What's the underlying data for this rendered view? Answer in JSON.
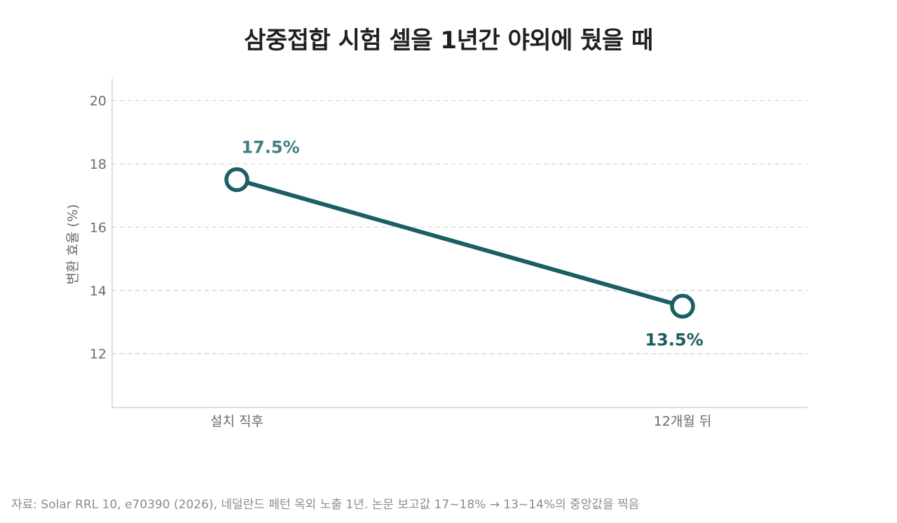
{
  "chart_data": {
    "type": "line",
    "title": "삼중접합 시험 셀을 1년간 야외에 뒀을 때",
    "ylabel": "변환 효율 (%)",
    "xlabel": "",
    "categories": [
      "설치 직후",
      "12개월 뒤"
    ],
    "series": [
      {
        "values": [
          17.5,
          13.5
        ],
        "data_labels": [
          "17.5%",
          "13.5%"
        ],
        "color": "#1b5e63"
      }
    ],
    "yticks": [
      12,
      14,
      16,
      18,
      20
    ],
    "ylim": [
      10.3,
      20.7
    ],
    "grid": true,
    "legend": "none"
  },
  "colors": {
    "line": "#1b5e63",
    "start_label": "#3f7f83",
    "end_label": "#1b5e63",
    "axis_text": "#6b6b6b",
    "grid": "#d6d6d6",
    "axis_line": "#cccccc"
  },
  "source_note": "자료: Solar RRL 10, e70390 (2026), 네덜란드 페턴 옥외 노출 1년. 논문 보고값 17~18% → 13~14%의 중앙값을 찍음"
}
